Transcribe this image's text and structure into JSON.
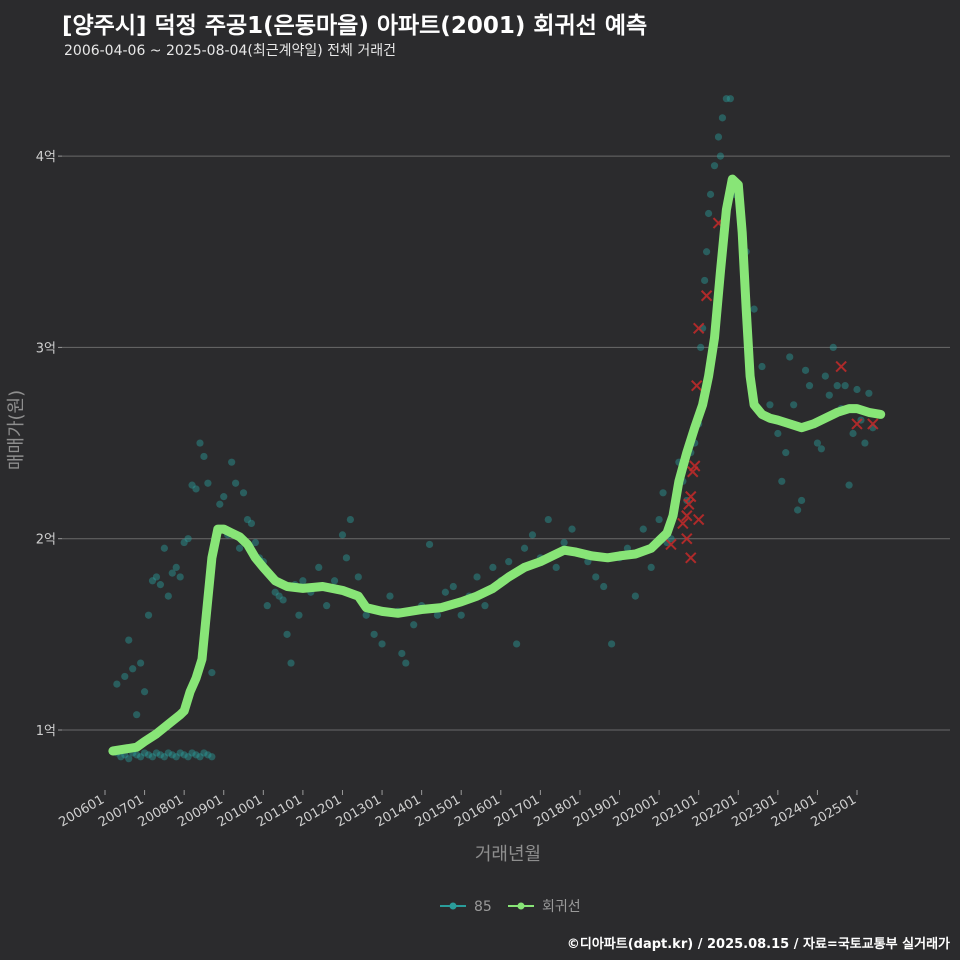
{
  "chart_data": {
    "type": "scatter",
    "title": "[양주시] 덕정 주공1(은동마을) 아파트(2001) 회귀선 예측",
    "subtitle": "2006-04-06 ~ 2025-08-04(최근계약일) 전체 거래건",
    "xlabel": "거래년월",
    "ylabel": "매매가(원)",
    "y_unit": "억",
    "ylim": [
      0.7,
      4.45
    ],
    "xlim": [
      2006.0,
      2026.0
    ],
    "y_ticks": [
      {
        "value": 1,
        "label": "1억"
      },
      {
        "value": 2,
        "label": "2억"
      },
      {
        "value": 3,
        "label": "3억"
      },
      {
        "value": 4,
        "label": "4억"
      }
    ],
    "x_ticks": [
      {
        "value": 2006.0,
        "label": "200601"
      },
      {
        "value": 2007.0,
        "label": "200701"
      },
      {
        "value": 2008.0,
        "label": "200801"
      },
      {
        "value": 2009.0,
        "label": "200901"
      },
      {
        "value": 2010.0,
        "label": "201001"
      },
      {
        "value": 2011.0,
        "label": "201101"
      },
      {
        "value": 2012.0,
        "label": "201201"
      },
      {
        "value": 2013.0,
        "label": "201301"
      },
      {
        "value": 2014.0,
        "label": "201401"
      },
      {
        "value": 2015.0,
        "label": "201501"
      },
      {
        "value": 2016.0,
        "label": "201601"
      },
      {
        "value": 2017.0,
        "label": "201701"
      },
      {
        "value": 2018.0,
        "label": "201801"
      },
      {
        "value": 2019.0,
        "label": "201901"
      },
      {
        "value": 2020.0,
        "label": "202001"
      },
      {
        "value": 2021.0,
        "label": "202101"
      },
      {
        "value": 2022.0,
        "label": "202201"
      },
      {
        "value": 2023.0,
        "label": "202301"
      },
      {
        "value": 2024.0,
        "label": "202401"
      },
      {
        "value": 2025.0,
        "label": "202501"
      }
    ],
    "series": [
      {
        "name": "85",
        "kind": "scatter",
        "color": "#2a9d9b",
        "points": [
          [
            2006.3,
            0.88
          ],
          [
            2006.4,
            0.86
          ],
          [
            2006.5,
            0.87
          ],
          [
            2006.6,
            0.85
          ],
          [
            2006.7,
            0.88
          ],
          [
            2006.8,
            0.87
          ],
          [
            2006.9,
            0.86
          ],
          [
            2007.0,
            0.88
          ],
          [
            2007.1,
            0.87
          ],
          [
            2007.2,
            0.86
          ],
          [
            2007.3,
            0.88
          ],
          [
            2007.4,
            0.87
          ],
          [
            2007.5,
            0.86
          ],
          [
            2007.6,
            0.88
          ],
          [
            2007.7,
            0.87
          ],
          [
            2007.8,
            0.86
          ],
          [
            2007.9,
            0.88
          ],
          [
            2008.0,
            0.87
          ],
          [
            2008.1,
            0.86
          ],
          [
            2008.2,
            0.88
          ],
          [
            2008.3,
            0.87
          ],
          [
            2008.4,
            0.86
          ],
          [
            2008.5,
            0.88
          ],
          [
            2008.6,
            0.87
          ],
          [
            2008.7,
            0.86
          ],
          [
            2006.3,
            1.24
          ],
          [
            2006.5,
            1.28
          ],
          [
            2006.6,
            1.47
          ],
          [
            2006.7,
            1.32
          ],
          [
            2006.8,
            1.08
          ],
          [
            2006.9,
            1.35
          ],
          [
            2007.0,
            1.2
          ],
          [
            2007.1,
            1.6
          ],
          [
            2007.2,
            1.78
          ],
          [
            2007.3,
            1.8
          ],
          [
            2007.4,
            1.76
          ],
          [
            2007.5,
            1.95
          ],
          [
            2007.6,
            1.7
          ],
          [
            2007.7,
            1.82
          ],
          [
            2007.8,
            1.85
          ],
          [
            2007.9,
            1.8
          ],
          [
            2008.0,
            1.98
          ],
          [
            2008.1,
            2.0
          ],
          [
            2008.2,
            2.28
          ],
          [
            2008.3,
            2.26
          ],
          [
            2008.4,
            2.5
          ],
          [
            2008.5,
            2.43
          ],
          [
            2008.6,
            2.29
          ],
          [
            2008.7,
            1.3
          ],
          [
            2008.9,
            2.18
          ],
          [
            2009.0,
            2.22
          ],
          [
            2009.1,
            2.02
          ],
          [
            2009.2,
            2.4
          ],
          [
            2009.3,
            2.29
          ],
          [
            2009.4,
            1.95
          ],
          [
            2009.5,
            2.24
          ],
          [
            2009.6,
            2.1
          ],
          [
            2009.7,
            2.08
          ],
          [
            2009.8,
            1.98
          ],
          [
            2009.9,
            1.9
          ],
          [
            2010.0,
            1.88
          ],
          [
            2010.1,
            1.65
          ],
          [
            2010.2,
            1.8
          ],
          [
            2010.3,
            1.72
          ],
          [
            2010.4,
            1.7
          ],
          [
            2010.5,
            1.68
          ],
          [
            2010.6,
            1.5
          ],
          [
            2010.7,
            1.35
          ],
          [
            2010.8,
            1.76
          ],
          [
            2010.9,
            1.6
          ],
          [
            2011.0,
            1.78
          ],
          [
            2011.2,
            1.72
          ],
          [
            2011.4,
            1.85
          ],
          [
            2011.6,
            1.65
          ],
          [
            2011.8,
            1.78
          ],
          [
            2012.0,
            2.02
          ],
          [
            2012.1,
            1.9
          ],
          [
            2012.2,
            2.1
          ],
          [
            2012.4,
            1.8
          ],
          [
            2012.6,
            1.6
          ],
          [
            2012.8,
            1.5
          ],
          [
            2013.0,
            1.45
          ],
          [
            2013.2,
            1.7
          ],
          [
            2013.4,
            1.62
          ],
          [
            2013.5,
            1.4
          ],
          [
            2013.6,
            1.35
          ],
          [
            2013.8,
            1.55
          ],
          [
            2014.0,
            1.65
          ],
          [
            2014.2,
            1.97
          ],
          [
            2014.4,
            1.6
          ],
          [
            2014.6,
            1.72
          ],
          [
            2014.8,
            1.75
          ],
          [
            2015.0,
            1.6
          ],
          [
            2015.2,
            1.7
          ],
          [
            2015.4,
            1.8
          ],
          [
            2015.6,
            1.65
          ],
          [
            2015.8,
            1.85
          ],
          [
            2016.0,
            1.78
          ],
          [
            2016.2,
            1.88
          ],
          [
            2016.4,
            1.45
          ],
          [
            2016.6,
            1.95
          ],
          [
            2016.8,
            2.02
          ],
          [
            2017.0,
            1.9
          ],
          [
            2017.2,
            2.1
          ],
          [
            2017.4,
            1.85
          ],
          [
            2017.6,
            1.98
          ],
          [
            2017.8,
            2.05
          ],
          [
            2018.0,
            1.92
          ],
          [
            2018.2,
            1.88
          ],
          [
            2018.4,
            1.8
          ],
          [
            2018.6,
            1.75
          ],
          [
            2018.8,
            1.45
          ],
          [
            2019.0,
            1.9
          ],
          [
            2019.2,
            1.95
          ],
          [
            2019.4,
            1.7
          ],
          [
            2019.6,
            2.05
          ],
          [
            2019.8,
            1.85
          ],
          [
            2020.0,
            2.1
          ],
          [
            2020.1,
            2.24
          ],
          [
            2020.2,
            1.98
          ],
          [
            2020.3,
            2.0
          ],
          [
            2020.4,
            2.15
          ],
          [
            2020.5,
            2.4
          ],
          [
            2020.6,
            2.3
          ],
          [
            2020.7,
            2.2
          ],
          [
            2020.8,
            2.45
          ],
          [
            2020.9,
            2.5
          ],
          [
            2021.0,
            2.6
          ],
          [
            2021.05,
            3.0
          ],
          [
            2021.1,
            3.1
          ],
          [
            2021.15,
            3.35
          ],
          [
            2021.2,
            3.5
          ],
          [
            2021.25,
            3.7
          ],
          [
            2021.3,
            3.8
          ],
          [
            2021.4,
            3.95
          ],
          [
            2021.5,
            4.1
          ],
          [
            2021.55,
            4.0
          ],
          [
            2021.6,
            4.2
          ],
          [
            2021.7,
            4.3
          ],
          [
            2021.8,
            4.3
          ],
          [
            2021.9,
            3.8
          ],
          [
            2022.1,
            3.6
          ],
          [
            2022.2,
            3.5
          ],
          [
            2022.4,
            3.2
          ],
          [
            2022.6,
            2.9
          ],
          [
            2022.8,
            2.7
          ],
          [
            2023.0,
            2.55
          ],
          [
            2023.1,
            2.3
          ],
          [
            2023.2,
            2.45
          ],
          [
            2023.3,
            2.95
          ],
          [
            2023.4,
            2.7
          ],
          [
            2023.5,
            2.15
          ],
          [
            2023.6,
            2.2
          ],
          [
            2023.7,
            2.88
          ],
          [
            2023.8,
            2.8
          ],
          [
            2023.9,
            2.6
          ],
          [
            2024.0,
            2.5
          ],
          [
            2024.1,
            2.47
          ],
          [
            2024.2,
            2.85
          ],
          [
            2024.3,
            2.75
          ],
          [
            2024.4,
            3.0
          ],
          [
            2024.5,
            2.8
          ],
          [
            2024.6,
            2.68
          ],
          [
            2024.7,
            2.8
          ],
          [
            2024.8,
            2.28
          ],
          [
            2024.9,
            2.55
          ],
          [
            2025.0,
            2.78
          ],
          [
            2025.1,
            2.62
          ],
          [
            2025.2,
            2.5
          ],
          [
            2025.3,
            2.76
          ],
          [
            2025.4,
            2.58
          ]
        ]
      },
      {
        "name": "회귀선",
        "kind": "line",
        "color": "#88e577",
        "points": [
          [
            2006.2,
            0.89
          ],
          [
            2006.5,
            0.9
          ],
          [
            2006.8,
            0.91
          ],
          [
            2007.0,
            0.94
          ],
          [
            2007.3,
            0.98
          ],
          [
            2007.6,
            1.03
          ],
          [
            2007.9,
            1.08
          ],
          [
            2008.0,
            1.1
          ],
          [
            2008.15,
            1.2
          ],
          [
            2008.3,
            1.27
          ],
          [
            2008.45,
            1.37
          ],
          [
            2008.55,
            1.58
          ],
          [
            2008.7,
            1.9
          ],
          [
            2008.85,
            2.05
          ],
          [
            2009.0,
            2.05
          ],
          [
            2009.2,
            2.03
          ],
          [
            2009.4,
            2.01
          ],
          [
            2009.6,
            1.97
          ],
          [
            2009.8,
            1.9
          ],
          [
            2010.0,
            1.85
          ],
          [
            2010.3,
            1.78
          ],
          [
            2010.6,
            1.75
          ],
          [
            2011.0,
            1.74
          ],
          [
            2011.5,
            1.75
          ],
          [
            2012.0,
            1.73
          ],
          [
            2012.4,
            1.7
          ],
          [
            2012.6,
            1.64
          ],
          [
            2013.0,
            1.62
          ],
          [
            2013.4,
            1.61
          ],
          [
            2013.7,
            1.62
          ],
          [
            2014.0,
            1.63
          ],
          [
            2014.5,
            1.64
          ],
          [
            2015.0,
            1.67
          ],
          [
            2015.4,
            1.7
          ],
          [
            2015.8,
            1.74
          ],
          [
            2016.2,
            1.8
          ],
          [
            2016.6,
            1.85
          ],
          [
            2017.0,
            1.88
          ],
          [
            2017.3,
            1.91
          ],
          [
            2017.6,
            1.94
          ],
          [
            2017.9,
            1.93
          ],
          [
            2018.3,
            1.91
          ],
          [
            2018.7,
            1.9
          ],
          [
            2019.0,
            1.91
          ],
          [
            2019.4,
            1.92
          ],
          [
            2019.8,
            1.95
          ],
          [
            2020.0,
            1.99
          ],
          [
            2020.2,
            2.03
          ],
          [
            2020.35,
            2.12
          ],
          [
            2020.5,
            2.3
          ],
          [
            2020.7,
            2.45
          ],
          [
            2020.9,
            2.58
          ],
          [
            2021.1,
            2.7
          ],
          [
            2021.25,
            2.85
          ],
          [
            2021.4,
            3.05
          ],
          [
            2021.55,
            3.4
          ],
          [
            2021.7,
            3.72
          ],
          [
            2021.85,
            3.88
          ],
          [
            2022.0,
            3.85
          ],
          [
            2022.1,
            3.6
          ],
          [
            2022.2,
            3.2
          ],
          [
            2022.3,
            2.85
          ],
          [
            2022.4,
            2.7
          ],
          [
            2022.6,
            2.65
          ],
          [
            2022.8,
            2.63
          ],
          [
            2023.0,
            2.62
          ],
          [
            2023.3,
            2.6
          ],
          [
            2023.6,
            2.58
          ],
          [
            2023.9,
            2.6
          ],
          [
            2024.2,
            2.63
          ],
          [
            2024.5,
            2.66
          ],
          [
            2024.8,
            2.68
          ],
          [
            2025.0,
            2.68
          ],
          [
            2025.3,
            2.66
          ],
          [
            2025.6,
            2.65
          ]
        ]
      },
      {
        "name": "cancelled",
        "kind": "x-marker",
        "color": "#c62a2a",
        "points": [
          [
            2020.3,
            1.97
          ],
          [
            2020.6,
            2.08
          ],
          [
            2020.7,
            2.12
          ],
          [
            2020.75,
            2.18
          ],
          [
            2020.8,
            2.22
          ],
          [
            2020.85,
            2.35
          ],
          [
            2020.9,
            2.38
          ],
          [
            2020.95,
            2.8
          ],
          [
            2021.0,
            2.1
          ],
          [
            2020.8,
            1.9
          ],
          [
            2020.7,
            2.0
          ],
          [
            2021.0,
            3.1
          ],
          [
            2021.2,
            3.27
          ],
          [
            2021.5,
            3.65
          ],
          [
            2024.6,
            2.9
          ],
          [
            2025.0,
            2.6
          ],
          [
            2025.4,
            2.6
          ]
        ]
      }
    ],
    "legend": {
      "position": "bottom",
      "items": [
        {
          "label": "85",
          "color": "#2a9d9b"
        },
        {
          "label": "회귀선",
          "color": "#88e577"
        }
      ]
    },
    "grid": true
  },
  "footer": "©디아파트(dapt.kr) / 2025.08.15 / 자료=국토교통부 실거래가"
}
